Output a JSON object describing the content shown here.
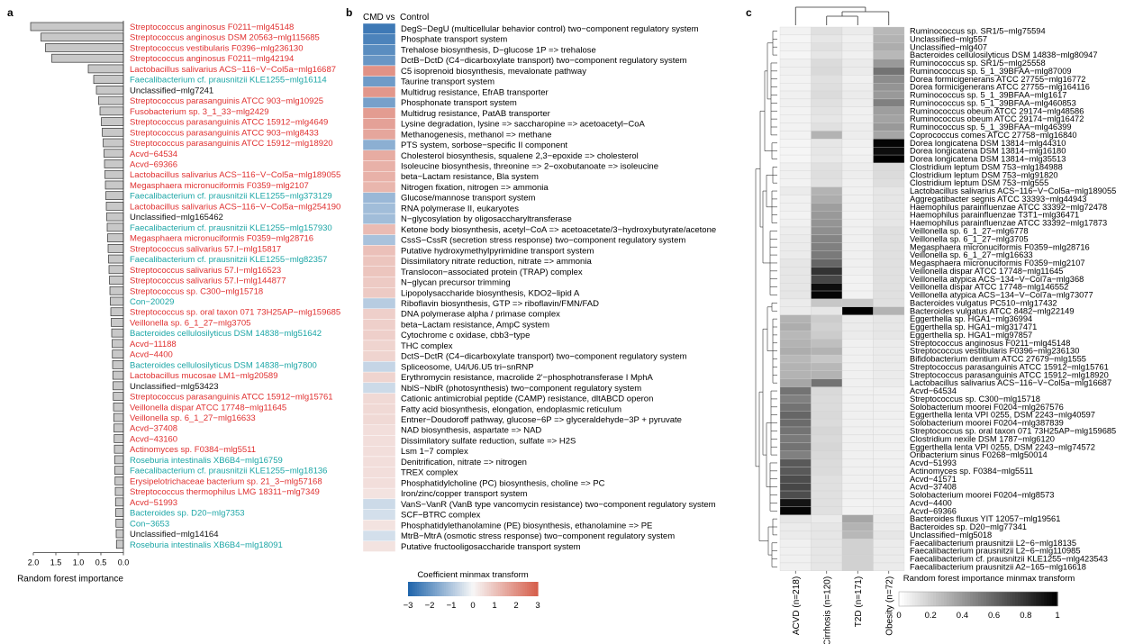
{
  "panels": {
    "a": "a",
    "b": "b",
    "c": "c"
  },
  "chart_data": [
    {
      "type": "bar",
      "orientation": "horizontal",
      "xlabel": "Random forest importance",
      "xticks": [
        "2.0",
        "1.5",
        "1.0",
        "0.5",
        "0.0"
      ],
      "xlim": [
        0,
        2.2
      ],
      "reversed_x": true,
      "categories": [
        "Streptococcus anginosus F0211−mlg45148",
        "Streptococcus anginosus DSM 20563−mlg115685",
        "Streptococcus vestibularis F0396−mlg236130",
        "Streptococcus anginosus F0211−mlg42194",
        "Lactobacillus salivarius ACS−116−V−Col5a−mlg16687",
        "Faecalibacterium cf. prausnitzii KLE1255−mlg16114",
        "Unclassified−mlg7241",
        "Streptococcus parasanguinis ATCC 903−mlg10925",
        "Fusobacterium sp. 3_1_33−mlg2429",
        "Streptococcus parasanguinis ATCC 15912−mlg4649",
        "Streptococcus parasanguinis ATCC 903−mlg8433",
        "Streptococcus parasanguinis ATCC 15912−mlg18920",
        "Acvd−64534",
        "Acvd−69366",
        "Lactobacillus salivarius ACS−116−V−Col5a−mlg189055",
        "Megasphaera micronuciformis F0359−mlg2107",
        "Faecalibacterium cf. prausnitzii KLE1255−mlg373129",
        "Lactobacillus salivarius ACS−116−V−Col5a−mlg254190",
        "Unclassified−mlg165462",
        "Faecalibacterium cf. prausnitzii KLE1255−mlg157930",
        "Megasphaera micronuciformis F0359−mlg28716",
        "Streptococcus salivarius 57.I−mlg15817",
        "Faecalibacterium cf. prausnitzii KLE1255−mlg82357",
        "Streptococcus salivarius 57.I−mlg16523",
        "Streptococcus salivarius 57.I−mlg144877",
        "Streptococcus sp. C300−mlg15718",
        "Con−20029",
        "Streptococcus sp. oral taxon 071 73H25AP−mlg159685",
        "Veillonella sp. 6_1_27−mlg3705",
        "Bacteroides cellulosilyticus DSM 14838−mlg51642",
        "Acvd−11188",
        "Acvd−4400",
        "Bacteroides cellulosilyticus DSM 14838−mlg7800",
        "Lactobacillus mucosae LM1−mlg20589",
        "Unclassified−mlg53423",
        "Streptococcus parasanguinis ATCC 15912−mlg15761",
        "Veillonella dispar ATCC 17748−mlg11645",
        "Veillonella sp. 6_1_27−mlg16633",
        "Acvd−37408",
        "Acvd−43160",
        "Actinomyces sp. F0384−mlg5511",
        "Roseburia intestinalis XB6B4−mlg16759",
        "Faecalibacterium cf. prausnitzii KLE1255−mlg18136",
        "Erysipelotrichaceae bacterium sp. 21_3−mlg57168",
        "Streptococcus thermophilus LMG 18311−mlg7349",
        "Acvd−51993",
        "Bacteroides sp. D20−mlg7353",
        "Con−3653",
        "Unclassified−mlg14164",
        "Roseburia intestinalis XB6B4−mlg18091"
      ],
      "values": [
        2.06,
        1.83,
        1.73,
        1.59,
        0.78,
        0.66,
        0.6,
        0.55,
        0.52,
        0.49,
        0.47,
        0.45,
        0.43,
        0.42,
        0.41,
        0.4,
        0.39,
        0.38,
        0.37,
        0.36,
        0.35,
        0.34,
        0.33,
        0.32,
        0.31,
        0.3,
        0.29,
        0.28,
        0.27,
        0.26,
        0.25,
        0.245,
        0.24,
        0.235,
        0.23,
        0.225,
        0.22,
        0.215,
        0.21,
        0.205,
        0.2,
        0.195,
        0.19,
        0.185,
        0.18,
        0.175,
        0.17,
        0.165,
        0.16,
        0.155
      ],
      "group": [
        "acvd",
        "acvd",
        "acvd",
        "acvd",
        "acvd",
        "con",
        "unc",
        "acvd",
        "acvd",
        "acvd",
        "acvd",
        "acvd",
        "acvd",
        "acvd",
        "acvd",
        "acvd",
        "con",
        "acvd",
        "unc",
        "con",
        "acvd",
        "acvd",
        "con",
        "acvd",
        "acvd",
        "acvd",
        "con",
        "acvd",
        "acvd",
        "con",
        "acvd",
        "acvd",
        "con",
        "acvd",
        "unc",
        "acvd",
        "acvd",
        "acvd",
        "acvd",
        "acvd",
        "acvd",
        "con",
        "con",
        "acvd",
        "acvd",
        "acvd",
        "con",
        "con",
        "unc",
        "con"
      ],
      "group_colors": {
        "acvd": "#e03030",
        "con": "#1ca6a6",
        "unc": "#111111"
      }
    },
    {
      "type": "heatmap",
      "title_left": "CMD vs",
      "title_right": "Control",
      "legend_title": "Coefficient minmax transform",
      "legend_ticks": [
        "−3",
        "−2",
        "−1",
        "0",
        "1",
        "2",
        "3"
      ],
      "scale": {
        "min": -3,
        "max": 3,
        "colors": [
          "#2166ac",
          "#f7f7f7",
          "#d6604d"
        ]
      },
      "rows": [
        "DegS−DegU (multicellular behavior control) two−component regulatory system",
        "Phosphate transport system",
        "Trehalose biosynthesis, D−glucose 1P => trehalose",
        "DctB−DctD (C4−dicarboxylate transport) two−component regulatory system",
        "C5 isoprenoid biosynthesis, mevalonate pathway",
        "Taurine transport system",
        "Multidrug resistance, EfrAB transporter",
        "Phosphonate transport system",
        "Multidrug resistance, PatAB transporter",
        "Lysine degradation, lysine => saccharopine => acetoacetyl−CoA",
        "Methanogenesis, methanol => methane",
        "PTS system, sorbose−specific II component",
        "Cholesterol biosynthesis, squalene 2,3−epoxide => cholesterol",
        "Isoleucine biosynthesis, threonine => 2−oxobutanoate => isoleucine",
        "beta−Lactam resistance, Bla system",
        "Nitrogen fixation, nitrogen => ammonia",
        "Glucose/mannose transport system",
        "RNA polymerase II, eukaryotes",
        "N−glycosylation by oligosaccharyltransferase",
        "Ketone body biosynthesis, acetyl−CoA => acetoacetate/3−hydroxybutyrate/acetone",
        "CssS−CssR (secretion stress response) two−component regulatory system",
        "Putative hydroxymethylpyrimidine transport system",
        "Dissimilatory nitrate reduction, nitrate => ammonia",
        "Translocon−associated protein (TRAP) complex",
        "N−glycan precursor trimming",
        "Lipopolysaccharide biosynthesis, KDO2−lipid A",
        "Riboflavin biosynthesis, GTP => riboflavin/FMN/FAD",
        "DNA polymerase alpha / primase complex",
        "beta−Lactam resistance, AmpC system",
        "Cytochrome c oxidase, cbb3−type",
        "THC complex",
        "DctS−DctR (C4−dicarboxylate transport) two−component regulatory system",
        "Spliceosome, U4/U6.U5 tri−snRNP",
        "Erythromycin resistance, macrolide 2'−phosphotransferase I MphA",
        "NblS−NblR (photosynthesis) two−component regulatory system",
        "Cationic antimicrobial peptide (CAMP) resistance, dltABCD operon",
        "Fatty acid biosynthesis, elongation, endoplasmic reticulum",
        "Entner−Doudoroff pathway, glucose−6P => glyceraldehyde−3P + pyruvate",
        "NAD biosynthesis, aspartate => NAD",
        "Dissimilatory sulfate reduction, sulfate => H2S",
        "Lsm 1−7 complex",
        "Denitrification, nitrate => nitrogen",
        "TREX complex",
        "Phosphatidylcholine (PC) biosynthesis, choline => PC",
        "Iron/zinc/copper transport system",
        "VanS−VanR (VanB type vancomycin resistance) two−component regulatory system",
        "SCF−BTRC complex",
        "Phosphatidylethanolamine (PE) biosynthesis, ethanolamine => PE",
        "MtrB−MtrA (osmotic stress response) two−component regulatory system",
        "Putative fructooligosaccharide transport system"
      ],
      "values": [
        -2.6,
        -2.4,
        -2.2,
        -2.0,
        2.0,
        -1.9,
        1.9,
        -1.8,
        1.8,
        1.7,
        1.6,
        -1.5,
        1.5,
        1.4,
        1.4,
        1.3,
        -1.3,
        -1.2,
        -1.2,
        1.2,
        -1.1,
        1.1,
        1.0,
        1.0,
        0.9,
        0.9,
        -0.9,
        0.8,
        0.8,
        0.8,
        0.7,
        0.7,
        -0.7,
        0.7,
        -0.6,
        0.6,
        0.6,
        0.6,
        0.5,
        0.5,
        0.5,
        0.5,
        0.5,
        0.5,
        0.4,
        -0.6,
        -0.5,
        0.4,
        -0.5,
        0.4
      ]
    },
    {
      "type": "heatmap",
      "legend_title": "Random forest importance minmax transform",
      "legend_ticks": [
        "0",
        "0.2",
        "0.4",
        "0.6",
        "0.8",
        "1"
      ],
      "scale": {
        "min": 0,
        "max": 1,
        "colors": [
          "#ffffff",
          "#000000"
        ]
      },
      "columns": [
        "ACVD (n=218)",
        "Cirrhosis (n=120)",
        "T2D (n=171)",
        "Obesity (n=72)"
      ],
      "rows": [
        "Ruminococcus sp. SR1/5−mlg75594",
        "Unclassified−mlg557",
        "Unclassified−mlg407",
        "Bacteroides cellulosilyticus DSM 14838−mlg80947",
        "Ruminococcus sp. SR1/5−mlg25558",
        "Ruminococcus sp. 5_1_39BFAA−mlg87009",
        "Dorea formicigenerans ATCC 27755−mlg16772",
        "Dorea formicigenerans ATCC 27755−mlg164116",
        "Ruminococcus sp. 5_1_39BFAA−mlg1617",
        "Ruminococcus sp. 5_1_39BFAA−mlg460853",
        "Ruminococcus obeum ATCC 29174−mlg48586",
        "Ruminococcus obeum ATCC 29174−mlg16472",
        "Ruminococcus sp. 5_1_39BFAA−mlg46399",
        "Coprococcus comes ATCC 27758−mlg16840",
        "Dorea longicatena DSM 13814−mlg44310",
        "Dorea longicatena DSM 13814−mlg16180",
        "Dorea longicatena DSM 13814−mlg35513",
        "Clostridium leptum DSM 753−mlg184988",
        "Clostridium leptum DSM 753−mlg91820",
        "Clostridium leptum DSM 753−mlg555",
        "Lactobacillus salivarius ACS−116−V−Col5a−mlg189055",
        "Aggregatibacter segnis ATCC 33393−mlg44943",
        "Haemophilus parainfluenzae ATCC 33392−mlg72478",
        "Haemophilus parainfluenzae T3T1−mlg36471",
        "Haemophilus parainfluenzae ATCC 33392−mlg17873",
        "Veillonella sp. 6_1_27−mlg6778",
        "Veillonella sp. 6_1_27−mlg3705",
        "Megasphaera micronuciformis F0359−mlg28716",
        "Veillonella sp. 6_1_27−mlg16633",
        "Megasphaera micronuciformis F0359−mlg2107",
        "Veillonella dispar ATCC 17748−mlg11645",
        "Veillonella atypica ACS−134−V−Col7a−mlg368",
        "Veillonella dispar ATCC 17748−mlg146552",
        "Veillonella atypica ACS−134−V−Col7a−mlg73077",
        "Bacteroides vulgatus PC510−mlg17432",
        "Bacteroides vulgatus ATCC 8482−mlg22149",
        "Eggerthella sp. HGA1−mlg36994",
        "Eggerthella sp. HGA1−mlg317471",
        "Eggerthella sp. HGA1−mlg97857",
        "Streptococcus anginosus F0211−mlg45148",
        "Streptococcus vestibularis F0396−mlg236130",
        "Bifidobacterium dentium ATCC 27679−mlg1555",
        "Streptococcus parasanguinis ATCC 15912−mlg15761",
        "Streptococcus parasanguinis ATCC 15912−mlg18920",
        "Lactobacillus salivarius ACS−116−V−Col5a−mlg16687",
        "Acvd−64534",
        "Streptococcus sp. C300−mlg15718",
        "Solobacterium moorei F0204−mlg267576",
        "Eggerthella lenta VPI 0255, DSM 2243−mlg40597",
        "Solobacterium moorei F0204−mlg387839",
        "Streptococcus sp. oral taxon 071 73H25AP−mlg159685",
        "Clostridium nexile DSM 1787−mlg6120",
        "Eggerthella lenta VPI 0255, DSM 2243−mlg74572",
        "Oribacterium sinus F0268−mlg50014",
        "Acvd−51993",
        "Actinomyces sp. F0384−mlg5511",
        "Acvd−41571",
        "Acvd−37408",
        "Solobacterium moorei F0204−mlg8573",
        "Acvd−4400",
        "Acvd−69366",
        "Bacteroides fluxus YIT 12057−mlg19561",
        "Bacteroides sp. D20−mlg77341",
        "Unclassified−mlg5018",
        "Faecalibacterium prausnitzii L2−6−mlg18135",
        "Faecalibacterium prausnitzii L2−6−mlg110985",
        "Faecalibacterium cf. prausnitzii KLE1255−mlg423543",
        "Faecalibacterium prausnitzii A2−165−mlg16618"
      ],
      "values": [
        [
          0.05,
          0.12,
          0.08,
          0.28
        ],
        [
          0.04,
          0.1,
          0.06,
          0.3
        ],
        [
          0.05,
          0.12,
          0.07,
          0.32
        ],
        [
          0.04,
          0.1,
          0.06,
          0.28
        ],
        [
          0.06,
          0.14,
          0.08,
          0.4
        ],
        [
          0.06,
          0.15,
          0.08,
          0.55
        ],
        [
          0.05,
          0.12,
          0.06,
          0.45
        ],
        [
          0.05,
          0.13,
          0.07,
          0.42
        ],
        [
          0.06,
          0.14,
          0.08,
          0.4
        ],
        [
          0.06,
          0.12,
          0.07,
          0.5
        ],
        [
          0.05,
          0.11,
          0.06,
          0.38
        ],
        [
          0.05,
          0.1,
          0.06,
          0.36
        ],
        [
          0.05,
          0.12,
          0.07,
          0.4
        ],
        [
          0.05,
          0.3,
          0.07,
          0.35
        ],
        [
          0.04,
          0.1,
          0.06,
          0.98
        ],
        [
          0.04,
          0.1,
          0.05,
          0.95
        ],
        [
          0.04,
          0.09,
          0.06,
          1.0
        ],
        [
          0.06,
          0.12,
          0.07,
          0.14
        ],
        [
          0.06,
          0.13,
          0.07,
          0.14
        ],
        [
          0.05,
          0.12,
          0.06,
          0.13
        ],
        [
          0.08,
          0.3,
          0.06,
          0.1
        ],
        [
          0.06,
          0.32,
          0.06,
          0.1
        ],
        [
          0.06,
          0.38,
          0.06,
          0.1
        ],
        [
          0.05,
          0.4,
          0.05,
          0.1
        ],
        [
          0.06,
          0.42,
          0.06,
          0.1
        ],
        [
          0.07,
          0.44,
          0.06,
          0.12
        ],
        [
          0.08,
          0.48,
          0.06,
          0.12
        ],
        [
          0.08,
          0.5,
          0.06,
          0.12
        ],
        [
          0.08,
          0.52,
          0.06,
          0.12
        ],
        [
          0.1,
          0.6,
          0.06,
          0.12
        ],
        [
          0.1,
          0.8,
          0.06,
          0.12
        ],
        [
          0.1,
          0.72,
          0.05,
          0.12
        ],
        [
          0.1,
          0.95,
          0.05,
          0.12
        ],
        [
          0.1,
          0.98,
          0.05,
          0.12
        ],
        [
          0.08,
          0.22,
          0.22,
          0.12
        ],
        [
          0.08,
          0.1,
          1.0,
          0.3
        ],
        [
          0.3,
          0.2,
          0.08,
          0.1
        ],
        [
          0.32,
          0.18,
          0.08,
          0.1
        ],
        [
          0.28,
          0.2,
          0.08,
          0.1
        ],
        [
          0.3,
          0.25,
          0.06,
          0.08
        ],
        [
          0.32,
          0.3,
          0.06,
          0.08
        ],
        [
          0.28,
          0.22,
          0.06,
          0.08
        ],
        [
          0.3,
          0.28,
          0.06,
          0.08
        ],
        [
          0.3,
          0.3,
          0.06,
          0.08
        ],
        [
          0.35,
          0.55,
          0.06,
          0.08
        ],
        [
          0.55,
          0.15,
          0.06,
          0.06
        ],
        [
          0.5,
          0.14,
          0.06,
          0.06
        ],
        [
          0.55,
          0.14,
          0.06,
          0.06
        ],
        [
          0.6,
          0.15,
          0.06,
          0.06
        ],
        [
          0.58,
          0.14,
          0.06,
          0.06
        ],
        [
          0.55,
          0.16,
          0.06,
          0.06
        ],
        [
          0.52,
          0.15,
          0.06,
          0.06
        ],
        [
          0.55,
          0.16,
          0.06,
          0.06
        ],
        [
          0.5,
          0.15,
          0.06,
          0.06
        ],
        [
          0.65,
          0.14,
          0.06,
          0.06
        ],
        [
          0.65,
          0.14,
          0.06,
          0.06
        ],
        [
          0.7,
          0.12,
          0.06,
          0.06
        ],
        [
          0.72,
          0.12,
          0.06,
          0.06
        ],
        [
          0.7,
          0.12,
          0.06,
          0.06
        ],
        [
          0.92,
          0.12,
          0.05,
          0.06
        ],
        [
          0.98,
          0.12,
          0.05,
          0.06
        ],
        [
          0.1,
          0.08,
          0.35,
          0.08
        ],
        [
          0.08,
          0.1,
          0.3,
          0.08
        ],
        [
          0.08,
          0.1,
          0.28,
          0.1
        ],
        [
          0.06,
          0.1,
          0.18,
          0.08
        ],
        [
          0.06,
          0.1,
          0.18,
          0.08
        ],
        [
          0.06,
          0.1,
          0.18,
          0.08
        ],
        [
          0.06,
          0.1,
          0.18,
          0.08
        ]
      ]
    }
  ]
}
